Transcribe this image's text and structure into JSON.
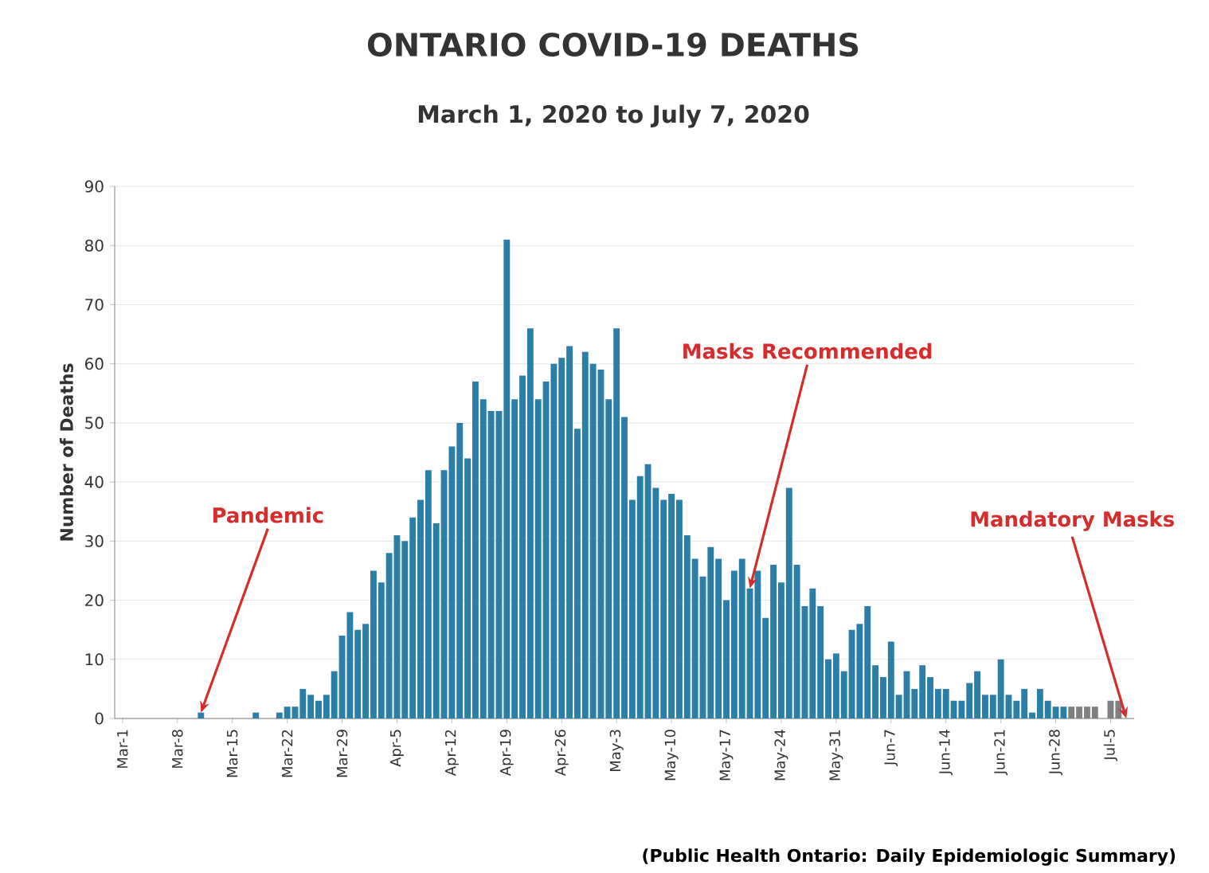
{
  "chart_data": {
    "type": "bar",
    "title": "ONTARIO COVID-19 DEATHS",
    "subtitle": "March 1, 2020 to July 7, 2020",
    "ylabel": "Number of Deaths",
    "x": [
      "2020-03-01",
      "2020-03-02",
      "2020-03-03",
      "2020-03-04",
      "2020-03-05",
      "2020-03-06",
      "2020-03-07",
      "2020-03-08",
      "2020-03-09",
      "2020-03-10",
      "2020-03-11",
      "2020-03-12",
      "2020-03-13",
      "2020-03-14",
      "2020-03-15",
      "2020-03-16",
      "2020-03-17",
      "2020-03-18",
      "2020-03-19",
      "2020-03-20",
      "2020-03-21",
      "2020-03-22",
      "2020-03-23",
      "2020-03-24",
      "2020-03-25",
      "2020-03-26",
      "2020-03-27",
      "2020-03-28",
      "2020-03-29",
      "2020-03-30",
      "2020-03-31",
      "2020-04-01",
      "2020-04-02",
      "2020-04-03",
      "2020-04-04",
      "2020-04-05",
      "2020-04-06",
      "2020-04-07",
      "2020-04-08",
      "2020-04-09",
      "2020-04-10",
      "2020-04-11",
      "2020-04-12",
      "2020-04-13",
      "2020-04-14",
      "2020-04-15",
      "2020-04-16",
      "2020-04-17",
      "2020-04-18",
      "2020-04-19",
      "2020-04-20",
      "2020-04-21",
      "2020-04-22",
      "2020-04-23",
      "2020-04-24",
      "2020-04-25",
      "2020-04-26",
      "2020-04-27",
      "2020-04-28",
      "2020-04-29",
      "2020-04-30",
      "2020-05-01",
      "2020-05-02",
      "2020-05-03",
      "2020-05-04",
      "2020-05-05",
      "2020-05-06",
      "2020-05-07",
      "2020-05-08",
      "2020-05-09",
      "2020-05-10",
      "2020-05-11",
      "2020-05-12",
      "2020-05-13",
      "2020-05-14",
      "2020-05-15",
      "2020-05-16",
      "2020-05-17",
      "2020-05-18",
      "2020-05-19",
      "2020-05-20",
      "2020-05-21",
      "2020-05-22",
      "2020-05-23",
      "2020-05-24",
      "2020-05-25",
      "2020-05-26",
      "2020-05-27",
      "2020-05-28",
      "2020-05-29",
      "2020-05-30",
      "2020-05-31",
      "2020-06-01",
      "2020-06-02",
      "2020-06-03",
      "2020-06-04",
      "2020-06-05",
      "2020-06-06",
      "2020-06-07",
      "2020-06-08",
      "2020-06-09",
      "2020-06-10",
      "2020-06-11",
      "2020-06-12",
      "2020-06-13",
      "2020-06-14",
      "2020-06-15",
      "2020-06-16",
      "2020-06-17",
      "2020-06-18",
      "2020-06-19",
      "2020-06-20",
      "2020-06-21",
      "2020-06-22",
      "2020-06-23",
      "2020-06-24",
      "2020-06-25",
      "2020-06-26",
      "2020-06-27",
      "2020-06-28",
      "2020-06-29",
      "2020-06-30",
      "2020-07-01",
      "2020-07-02",
      "2020-07-03",
      "2020-07-04",
      "2020-07-05",
      "2020-07-06",
      "2020-07-07"
    ],
    "values": [
      0,
      0,
      0,
      0,
      0,
      0,
      0,
      0,
      0,
      0,
      1,
      0,
      0,
      0,
      0,
      0,
      0,
      1,
      0,
      0,
      1,
      2,
      2,
      5,
      4,
      3,
      4,
      8,
      14,
      18,
      15,
      16,
      25,
      23,
      28,
      31,
      30,
      34,
      37,
      42,
      33,
      42,
      46,
      50,
      44,
      57,
      54,
      52,
      52,
      81,
      54,
      58,
      66,
      54,
      57,
      60,
      61,
      63,
      49,
      62,
      60,
      59,
      54,
      66,
      51,
      37,
      41,
      43,
      39,
      37,
      38,
      37,
      31,
      27,
      24,
      29,
      27,
      20,
      25,
      27,
      22,
      25,
      17,
      26,
      23,
      39,
      26,
      19,
      22,
      19,
      10,
      11,
      8,
      15,
      16,
      19,
      9,
      7,
      13,
      4,
      8,
      5,
      9,
      7,
      5,
      5,
      3,
      3,
      6,
      8,
      4,
      4,
      10,
      4,
      3,
      5,
      1,
      5,
      3,
      2,
      2,
      2,
      2,
      2,
      2,
      0,
      3,
      3,
      0
    ],
    "colors": [
      "#2b7ea8",
      "#2b7ea8",
      "#2b7ea8",
      "#2b7ea8",
      "#2b7ea8",
      "#2b7ea8",
      "#2b7ea8",
      "#2b7ea8",
      "#2b7ea8",
      "#2b7ea8",
      "#2b7ea8",
      "#2b7ea8",
      "#2b7ea8",
      "#2b7ea8",
      "#2b7ea8",
      "#2b7ea8",
      "#2b7ea8",
      "#2b7ea8",
      "#2b7ea8",
      "#2b7ea8",
      "#2b7ea8",
      "#2b7ea8",
      "#2b7ea8",
      "#2b7ea8",
      "#2b7ea8",
      "#2b7ea8",
      "#2b7ea8",
      "#2b7ea8",
      "#2b7ea8",
      "#2b7ea8",
      "#2b7ea8",
      "#2b7ea8",
      "#2b7ea8",
      "#2b7ea8",
      "#2b7ea8",
      "#2b7ea8",
      "#2b7ea8",
      "#2b7ea8",
      "#2b7ea8",
      "#2b7ea8",
      "#2b7ea8",
      "#2b7ea8",
      "#2b7ea8",
      "#2b7ea8",
      "#2b7ea8",
      "#2b7ea8",
      "#2b7ea8",
      "#2b7ea8",
      "#2b7ea8",
      "#2b7ea8",
      "#2b7ea8",
      "#2b7ea8",
      "#2b7ea8",
      "#2b7ea8",
      "#2b7ea8",
      "#2b7ea8",
      "#2b7ea8",
      "#2b7ea8",
      "#2b7ea8",
      "#2b7ea8",
      "#2b7ea8",
      "#2b7ea8",
      "#2b7ea8",
      "#2b7ea8",
      "#2b7ea8",
      "#2b7ea8",
      "#2b7ea8",
      "#2b7ea8",
      "#2b7ea8",
      "#2b7ea8",
      "#2b7ea8",
      "#2b7ea8",
      "#2b7ea8",
      "#2b7ea8",
      "#2b7ea8",
      "#2b7ea8",
      "#2b7ea8",
      "#2b7ea8",
      "#2b7ea8",
      "#2b7ea8",
      "#2b7ea8",
      "#2b7ea8",
      "#2b7ea8",
      "#2b7ea8",
      "#2b7ea8",
      "#2b7ea8",
      "#2b7ea8",
      "#2b7ea8",
      "#2b7ea8",
      "#2b7ea8",
      "#2b7ea8",
      "#2b7ea8",
      "#2b7ea8",
      "#2b7ea8",
      "#2b7ea8",
      "#2b7ea8",
      "#2b7ea8",
      "#2b7ea8",
      "#2b7ea8",
      "#2b7ea8",
      "#2b7ea8",
      "#2b7ea8",
      "#2b7ea8",
      "#2b7ea8",
      "#2b7ea8",
      "#2b7ea8",
      "#2b7ea8",
      "#2b7ea8",
      "#2b7ea8",
      "#2b7ea8",
      "#2b7ea8",
      "#2b7ea8",
      "#2b7ea8",
      "#2b7ea8",
      "#2b7ea8",
      "#2b7ea8",
      "#2b7ea8",
      "#2b7ea8",
      "#2b7ea8",
      "#2b7ea8",
      "#2b7ea8",
      "#7f7f7f",
      "#7f7f7f",
      "#7f7f7f",
      "#7f7f7f",
      "#7f7f7f",
      "#7f7f7f",
      "#7f7f7f",
      "#7f7f7f"
    ],
    "xlim": [
      "2020-02-29",
      "2020-07-08"
    ],
    "xticks": [
      {
        "value": "2020-03-01",
        "label": "Mar-1"
      },
      {
        "value": "2020-03-08",
        "label": "Mar-8"
      },
      {
        "value": "2020-03-15",
        "label": "Mar-15"
      },
      {
        "value": "2020-03-22",
        "label": "Mar-22"
      },
      {
        "value": "2020-03-29",
        "label": "Mar-29"
      },
      {
        "value": "2020-04-05",
        "label": "Apr-5"
      },
      {
        "value": "2020-04-12",
        "label": "Apr-12"
      },
      {
        "value": "2020-04-19",
        "label": "Apr-19"
      },
      {
        "value": "2020-04-26",
        "label": "Apr-26"
      },
      {
        "value": "2020-05-03",
        "label": "May-3"
      },
      {
        "value": "2020-05-10",
        "label": "May-10"
      },
      {
        "value": "2020-05-17",
        "label": "May-17"
      },
      {
        "value": "2020-05-24",
        "label": "May-24"
      },
      {
        "value": "2020-05-31",
        "label": "May-31"
      },
      {
        "value": "2020-06-07",
        "label": "Jun-7"
      },
      {
        "value": "2020-06-14",
        "label": "Jun-14"
      },
      {
        "value": "2020-06-21",
        "label": "Jun-21"
      },
      {
        "value": "2020-06-28",
        "label": "Jun-28"
      },
      {
        "value": "2020-07-05",
        "label": "Jul-5"
      }
    ],
    "ylim": [
      0,
      90
    ],
    "yticks": [
      0,
      10,
      20,
      30,
      40,
      50,
      60,
      70,
      80,
      90
    ],
    "grid": "y",
    "annotations": [
      {
        "text": "Pandemic",
        "x": "2020-03-11",
        "y": 1
      },
      {
        "text": "Masks Recommended",
        "x": "2020-05-20",
        "y": 22
      },
      {
        "text": "Mandatory Masks",
        "x": "2020-07-07",
        "y": 0
      },
      "(Public Health Ontario: Daily Epidemiologic Summary)"
    ]
  }
}
